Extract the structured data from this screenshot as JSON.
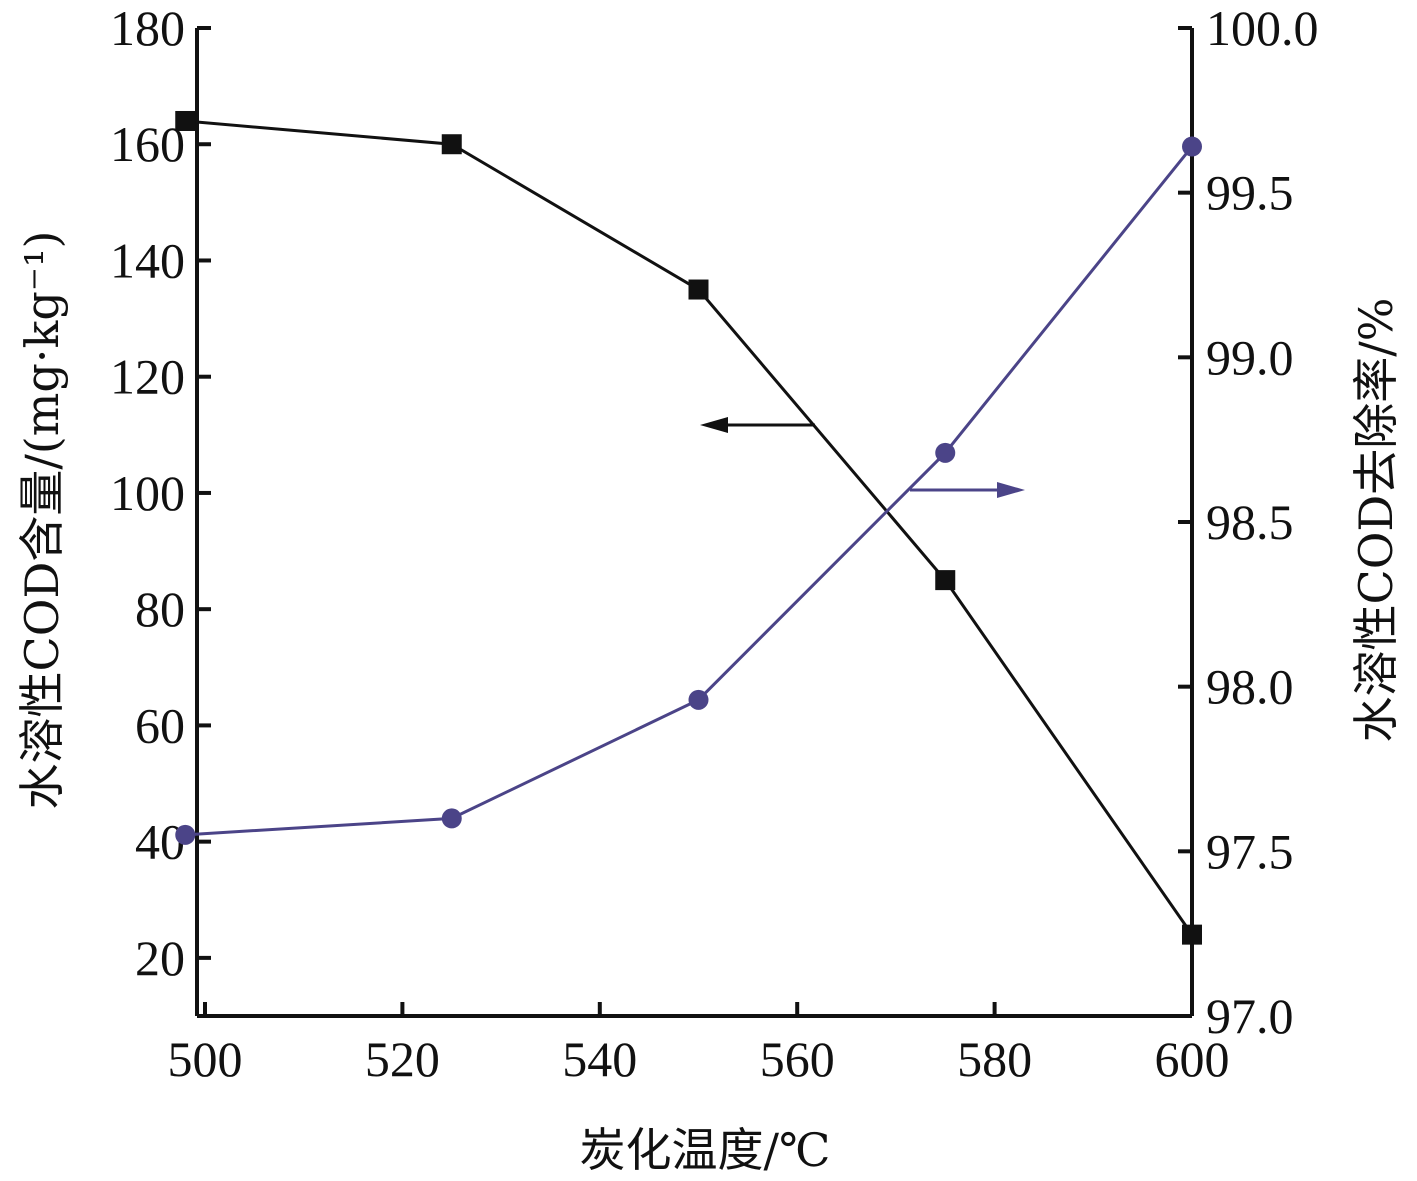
{
  "chart_data": {
    "type": "line",
    "title": "",
    "xlabel": "炭化温度/℃",
    "ylabel_left": "水溶性COD含量/(mg·kg⁻¹)",
    "ylabel_right": "水溶性COD去除率/%",
    "xlim": [
      498,
      600
    ],
    "ylim_left": [
      10,
      180
    ],
    "ylim_right": [
      97.0,
      100.0
    ],
    "x_ticks": [
      500,
      520,
      540,
      560,
      580,
      600
    ],
    "y_left_ticks": [
      20,
      40,
      60,
      80,
      100,
      120,
      140,
      160,
      180
    ],
    "y_right_ticks": [
      "97.0",
      "97.5",
      "98.0",
      "98.5",
      "99.0",
      "99.5",
      "100.0"
    ],
    "grid": false,
    "legend": "none",
    "series": [
      {
        "axis": "left",
        "marker": "square",
        "color": "#111111",
        "x": [
          498,
          525,
          550,
          575,
          600
        ],
        "values": [
          164,
          160,
          135,
          85,
          24
        ]
      },
      {
        "axis": "right",
        "marker": "circle",
        "color": "#4b4488",
        "x": [
          498,
          525,
          550,
          575,
          600
        ],
        "values": [
          97.55,
          97.6,
          97.96,
          98.71,
          99.64
        ]
      }
    ],
    "annotations": [
      {
        "type": "arrow",
        "direction": "left",
        "series": 0
      },
      {
        "type": "arrow",
        "direction": "right",
        "series": 1
      }
    ]
  }
}
